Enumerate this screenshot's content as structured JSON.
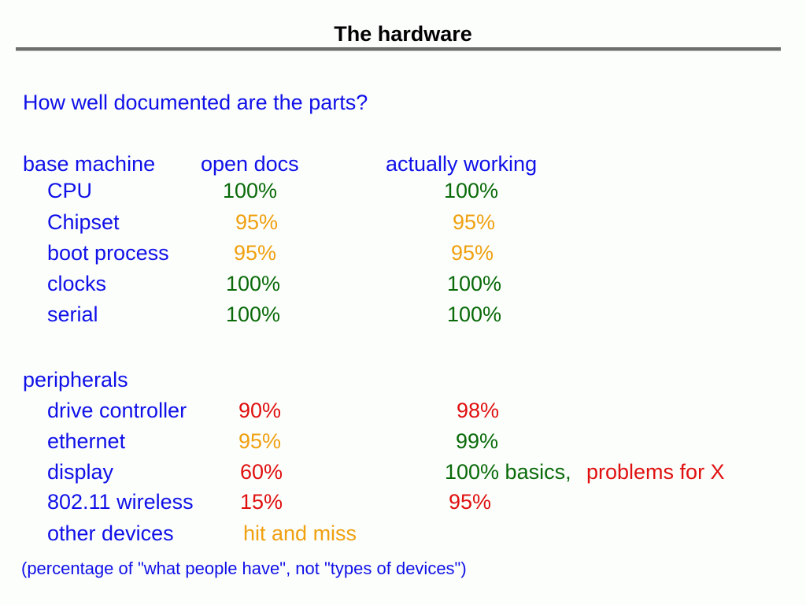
{
  "title": "The hardware",
  "question": "How well documented are the parts?",
  "headers": {
    "section": "base machine",
    "open_docs": "open docs",
    "working": "actually working"
  },
  "base_machine": [
    {
      "label": "CPU",
      "open_docs": "100%",
      "working": "100%"
    },
    {
      "label": "Chipset",
      "open_docs": "95%",
      "working": "95%"
    },
    {
      "label": "boot process",
      "open_docs": "95%",
      "working": "95%"
    },
    {
      "label": "clocks",
      "open_docs": "100%",
      "working": "100%"
    },
    {
      "label": "serial",
      "open_docs": "100%",
      "working": "100%"
    }
  ],
  "peripherals_heading": "peripherals",
  "peripherals": [
    {
      "label": "drive controller",
      "open_docs": "90%",
      "working": "98%"
    },
    {
      "label": "ethernet",
      "open_docs": "95%",
      "working": "99%"
    },
    {
      "label": "display",
      "open_docs": "60%",
      "working": "100% basics,",
      "working_extra": "problems for X"
    },
    {
      "label": "802.11 wireless",
      "open_docs": "15%",
      "working": "95%"
    },
    {
      "label": "other devices",
      "open_docs": "hit and miss"
    }
  ],
  "footnote": "(percentage of \"what people have\", not \"types of devices\")",
  "colors": {
    "heading": "#1010e8",
    "good": "#0a6a0a",
    "partial": "#f0a010",
    "poor": "#e01010"
  }
}
